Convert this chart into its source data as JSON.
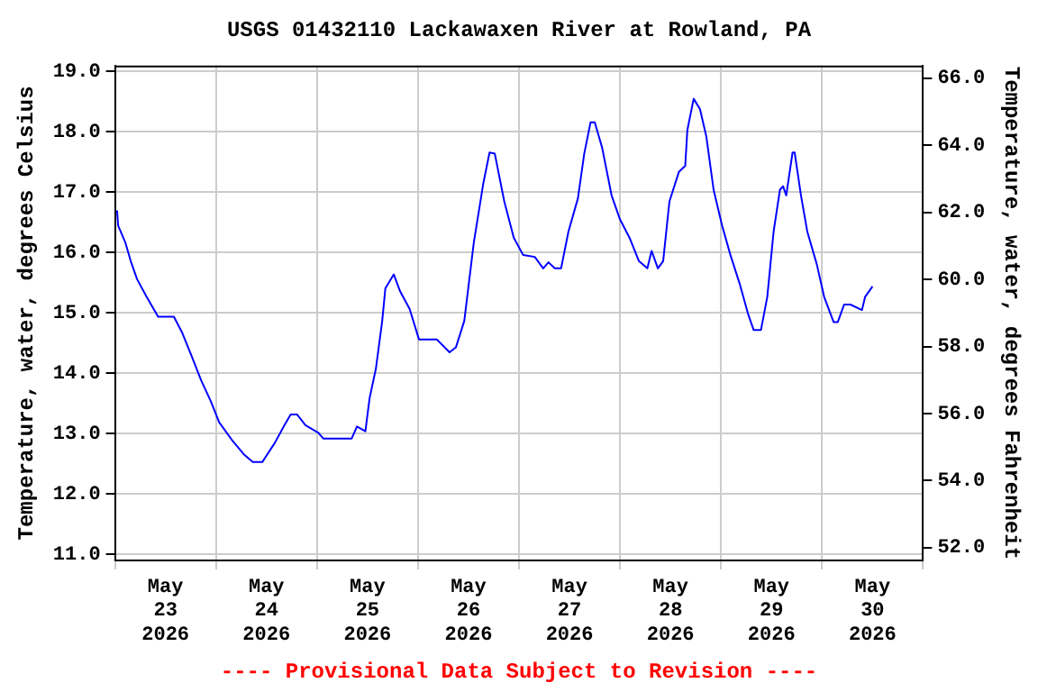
{
  "chart_data": {
    "type": "line",
    "title": "USGS 01432110 Lackawaxen River at Rowland, PA",
    "ylabel": "Temperature, water, degrees Celsius",
    "y2label": "Temperature, water, degrees Fahrenheit",
    "annotations": [
      "---- Provisional Data Subject to Revision ----"
    ],
    "x": [
      "2026-05-23T00:30",
      "2026-05-23T00:45",
      "2026-05-23T02:30",
      "2026-05-23T03:45",
      "2026-05-23T05:15",
      "2026-05-23T07:30",
      "2026-05-23T10:15",
      "2026-05-23T14:00",
      "2026-05-23T16:00",
      "2026-05-23T18:15",
      "2026-05-23T20:30",
      "2026-05-23T22:45",
      "2026-05-24T00:45",
      "2026-05-24T03:45",
      "2026-05-24T06:45",
      "2026-05-24T08:45",
      "2026-05-24T11:00",
      "2026-05-24T14:00",
      "2026-05-24T16:15",
      "2026-05-24T17:45",
      "2026-05-24T19:15",
      "2026-05-24T21:15",
      "2026-05-25T00:15",
      "2026-05-25T01:30",
      "2026-05-25T08:15",
      "2026-05-25T09:30",
      "2026-05-25T11:30",
      "2026-05-25T12:30",
      "2026-05-25T14:00",
      "2026-05-25T15:30",
      "2026-05-25T16:15",
      "2026-05-25T18:15",
      "2026-05-25T19:45",
      "2026-05-25T22:00",
      "2026-05-26T00:15",
      "2026-05-26T04:30",
      "2026-05-26T07:30",
      "2026-05-26T09:00",
      "2026-05-26T11:00",
      "2026-05-26T13:15",
      "2026-05-26T15:30",
      "2026-05-26T17:00",
      "2026-05-26T18:15",
      "2026-05-26T20:30",
      "2026-05-26T22:45",
      "2026-05-27T01:00",
      "2026-05-27T03:45",
      "2026-05-27T05:45",
      "2026-05-27T07:00",
      "2026-05-27T08:30",
      "2026-05-27T10:00",
      "2026-05-27T11:45",
      "2026-05-27T14:00",
      "2026-05-27T15:30",
      "2026-05-27T17:00",
      "2026-05-27T18:00",
      "2026-05-27T19:45",
      "2026-05-27T22:00",
      "2026-05-28T00:00",
      "2026-05-28T02:15",
      "2026-05-28T04:30",
      "2026-05-28T06:30",
      "2026-05-28T07:30",
      "2026-05-28T09:00",
      "2026-05-28T10:15",
      "2026-05-28T11:45",
      "2026-05-28T14:00",
      "2026-05-28T15:30",
      "2026-05-28T16:00",
      "2026-05-28T17:30",
      "2026-05-28T19:00",
      "2026-05-28T20:30",
      "2026-05-28T22:15",
      "2026-05-29T00:15",
      "2026-05-29T02:15",
      "2026-05-29T04:30",
      "2026-05-29T06:30",
      "2026-05-29T07:45",
      "2026-05-29T09:30",
      "2026-05-29T11:00",
      "2026-05-29T12:30",
      "2026-05-29T14:00",
      "2026-05-29T14:45",
      "2026-05-29T15:30",
      "2026-05-29T17:00",
      "2026-05-29T17:30",
      "2026-05-29T19:00",
      "2026-05-29T20:30",
      "2026-05-29T22:45",
      "2026-05-30T00:30",
      "2026-05-30T02:45",
      "2026-05-30T03:45",
      "2026-05-30T05:15",
      "2026-05-30T06:45",
      "2026-05-30T09:30",
      "2026-05-30T10:15",
      "2026-05-30T12:00"
    ],
    "series": [
      {
        "color": "#0000ff",
        "values": [
          16.7,
          16.45,
          16.16,
          15.86,
          15.56,
          15.27,
          14.94,
          14.94,
          14.67,
          14.28,
          13.88,
          13.54,
          13.19,
          12.9,
          12.65,
          12.53,
          12.53,
          12.85,
          13.14,
          13.32,
          13.32,
          13.14,
          13.02,
          12.92,
          12.92,
          13.12,
          13.04,
          13.59,
          14.08,
          14.87,
          15.41,
          15.64,
          15.36,
          15.07,
          14.56,
          14.56,
          14.35,
          14.43,
          14.87,
          16.16,
          17.14,
          17.66,
          17.64,
          16.85,
          16.25,
          15.96,
          15.93,
          15.74,
          15.84,
          15.74,
          15.74,
          16.35,
          16.9,
          17.64,
          18.16,
          18.16,
          17.74,
          16.95,
          16.55,
          16.25,
          15.86,
          15.74,
          16.03,
          15.74,
          15.86,
          16.85,
          17.34,
          17.44,
          18.03,
          18.55,
          18.38,
          17.93,
          17.04,
          16.45,
          15.96,
          15.47,
          14.97,
          14.72,
          14.72,
          15.27,
          16.35,
          17.04,
          17.1,
          16.95,
          17.66,
          17.66,
          16.95,
          16.35,
          15.81,
          15.27,
          14.85,
          14.85,
          15.14,
          15.14,
          15.05,
          15.27,
          15.44
        ]
      }
    ],
    "xlim": [
      "2026-05-23T00:00",
      "2026-05-31T00:00"
    ],
    "xticks": [
      {
        "value": "2026-05-23T00:00",
        "label": null
      },
      {
        "value": "2026-05-23T12:00",
        "label": "May 23 2026"
      },
      {
        "value": "2026-05-24T00:00",
        "label": null
      },
      {
        "value": "2026-05-24T12:00",
        "label": "May 24 2026"
      },
      {
        "value": "2026-05-25T00:00",
        "label": null
      },
      {
        "value": "2026-05-25T12:00",
        "label": "May 25 2026"
      },
      {
        "value": "2026-05-26T00:00",
        "label": null
      },
      {
        "value": "2026-05-26T12:00",
        "label": "May 26 2026"
      },
      {
        "value": "2026-05-27T00:00",
        "label": null
      },
      {
        "value": "2026-05-27T12:00",
        "label": "May 27 2026"
      },
      {
        "value": "2026-05-28T00:00",
        "label": null
      },
      {
        "value": "2026-05-28T12:00",
        "label": "May 28 2026"
      },
      {
        "value": "2026-05-29T00:00",
        "label": null
      },
      {
        "value": "2026-05-29T12:00",
        "label": "May 29 2026"
      },
      {
        "value": "2026-05-30T00:00",
        "label": null
      },
      {
        "value": "2026-05-30T12:00",
        "label": "May 30 2026"
      },
      {
        "value": "2026-05-31T00:00",
        "label": null
      }
    ],
    "ylim": [
      10.9,
      19.1
    ],
    "yticks": [
      {
        "value": 11,
        "label": "11.0"
      },
      {
        "value": 12,
        "label": "12.0"
      },
      {
        "value": 13,
        "label": "13.0"
      },
      {
        "value": 14,
        "label": "14.0"
      },
      {
        "value": 15,
        "label": "15.0"
      },
      {
        "value": 16,
        "label": "16.0"
      },
      {
        "value": 17,
        "label": "17.0"
      },
      {
        "value": 18,
        "label": "18.0"
      },
      {
        "value": 19,
        "label": "19.0"
      }
    ],
    "y2lim": [
      51.62,
      66.38
    ],
    "y2ticks": [
      {
        "value": 52,
        "label": "52.0"
      },
      {
        "value": 54,
        "label": "54.0"
      },
      {
        "value": 56,
        "label": "56.0"
      },
      {
        "value": 58,
        "label": "58.0"
      },
      {
        "value": 60,
        "label": "60.0"
      },
      {
        "value": 62,
        "label": "62.0"
      },
      {
        "value": 64,
        "label": "64.0"
      },
      {
        "value": 66,
        "label": "66.0"
      }
    ],
    "grid": true,
    "legend": false,
    "marker": "none",
    "line_style": "solid"
  }
}
